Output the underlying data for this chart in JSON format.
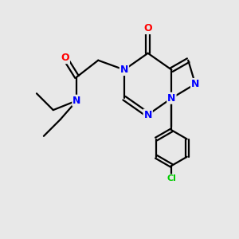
{
  "bg_color": "#e8e8e8",
  "bond_color": "#000000",
  "bond_width": 1.6,
  "atom_colors": {
    "N": "#0000ff",
    "O": "#ff0000",
    "C": "#000000",
    "Cl": "#00cc00"
  },
  "font_size_atom": 9,
  "figsize": [
    3.0,
    3.0
  ],
  "dpi": 100,
  "xlim": [
    0,
    10
  ],
  "ylim": [
    0,
    10
  ]
}
